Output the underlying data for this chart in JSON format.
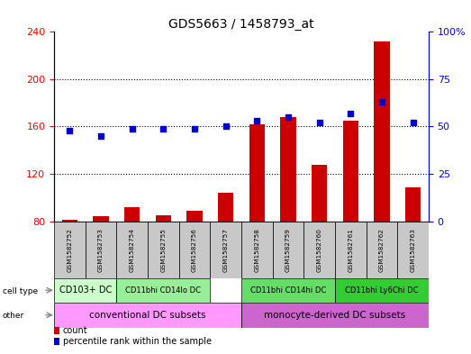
{
  "title": "GDS5663 / 1458793_at",
  "samples": [
    "GSM1582752",
    "GSM1582753",
    "GSM1582754",
    "GSM1582755",
    "GSM1582756",
    "GSM1582757",
    "GSM1582758",
    "GSM1582759",
    "GSM1582760",
    "GSM1582761",
    "GSM1582762",
    "GSM1582763"
  ],
  "counts": [
    81,
    84,
    92,
    85,
    89,
    104,
    162,
    168,
    128,
    165,
    232,
    109
  ],
  "percentiles": [
    48,
    45,
    49,
    49,
    49,
    50,
    53,
    55,
    52,
    57,
    63,
    52
  ],
  "ylim_left": [
    80,
    240
  ],
  "ylim_right": [
    0,
    100
  ],
  "yticks_left": [
    80,
    120,
    160,
    200,
    240
  ],
  "yticks_right": [
    0,
    25,
    50,
    75,
    100
  ],
  "bar_color": "#cc0000",
  "dot_color": "#0000cc",
  "cell_type_groups": [
    {
      "label": "CD103+ DC",
      "start": 0,
      "end": 2,
      "color": "#ccffcc"
    },
    {
      "label": "CD11bhi CD14lo DC",
      "start": 2,
      "end": 5,
      "color": "#99ee99"
    },
    {
      "label": "CD11bhi CD14hi DC",
      "start": 6,
      "end": 9,
      "color": "#66dd66"
    },
    {
      "label": "CD11bhi Ly6Chi DC",
      "start": 9,
      "end": 12,
      "color": "#33cc33"
    }
  ],
  "other_groups": [
    {
      "label": "conventional DC subsets",
      "start": 0,
      "end": 6,
      "color": "#ff99ff"
    },
    {
      "label": "monocyte-derived DC subsets",
      "start": 6,
      "end": 12,
      "color": "#cc66cc"
    }
  ],
  "sample_box_color": "#c8c8c8",
  "row_label_cell_type": "cell type",
  "row_label_other": "other",
  "legend_count_label": "count",
  "legend_pct_label": "percentile rank within the sample"
}
